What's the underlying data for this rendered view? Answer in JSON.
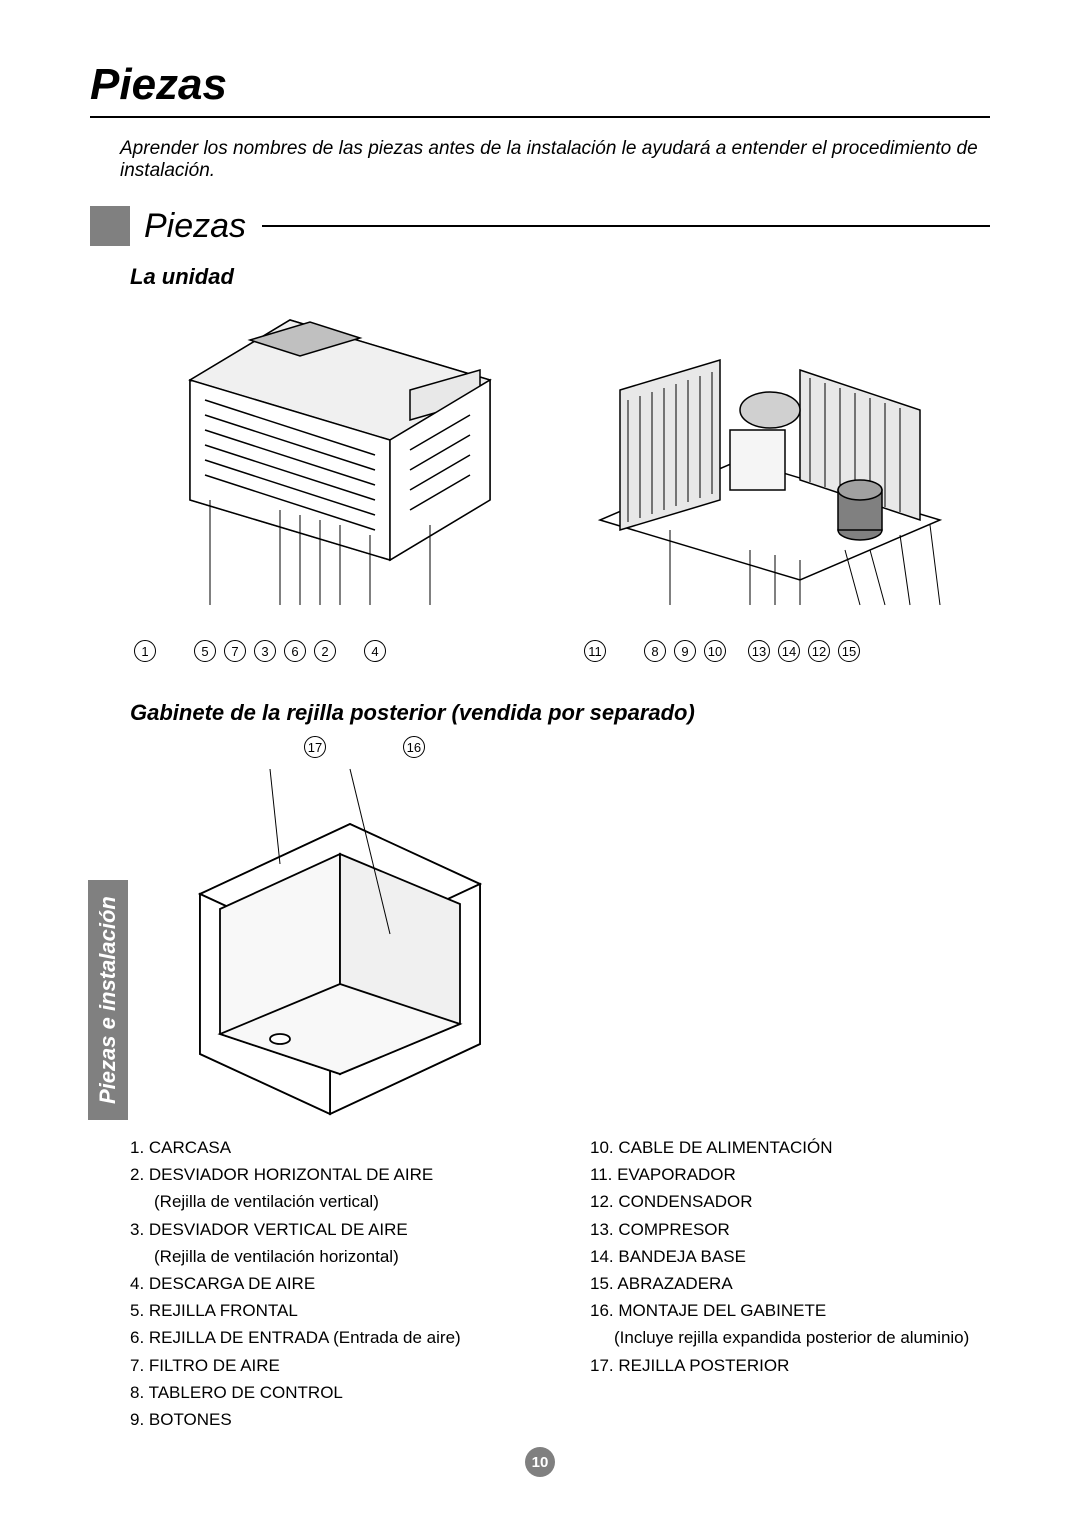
{
  "page": {
    "title": "Piezas",
    "intro": "Aprender los nombres de las piezas antes de la instalación le ayudará a entender el procedimiento de instalación.",
    "section_title": "Piezas",
    "side_tab": "Piezas e instalación",
    "page_number": "10"
  },
  "subheads": {
    "unit": "La unidad",
    "cabinet": "Gabinete de la rejilla posterior (vendida por separado)"
  },
  "callouts": {
    "front": [
      "1",
      "5",
      "7",
      "3",
      "6",
      "2",
      "4"
    ],
    "internal": [
      "11",
      "8",
      "9",
      "10",
      "13",
      "14",
      "12",
      "15"
    ],
    "cabinet": [
      "17",
      "16"
    ]
  },
  "parts": {
    "left": [
      {
        "n": "1.",
        "t": "CARCASA"
      },
      {
        "n": "2.",
        "t": "DESVIADOR HORIZONTAL DE AIRE",
        "sub": "(Rejilla de ventilación vertical)"
      },
      {
        "n": "3.",
        "t": "DESVIADOR VERTICAL DE AIRE",
        "sub": "(Rejilla de ventilación horizontal)"
      },
      {
        "n": "4.",
        "t": "DESCARGA DE AIRE"
      },
      {
        "n": "5.",
        "t": "REJILLA FRONTAL"
      },
      {
        "n": "6.",
        "t": "REJILLA DE ENTRADA (Entrada de aire)"
      },
      {
        "n": "7.",
        "t": "FILTRO DE AIRE"
      },
      {
        "n": "8.",
        "t": "TABLERO DE CONTROL"
      },
      {
        "n": "9.",
        "t": "BOTONES"
      }
    ],
    "right": [
      {
        "n": "10.",
        "t": "CABLE DE ALIMENTACIÓN"
      },
      {
        "n": "11.",
        "t": "EVAPORADOR"
      },
      {
        "n": "12.",
        "t": "CONDENSADOR"
      },
      {
        "n": "13.",
        "t": "COMPRESOR"
      },
      {
        "n": "14.",
        "t": "BANDEJA BASE"
      },
      {
        "n": "15.",
        "t": "ABRAZADERA"
      },
      {
        "n": "16.",
        "t": "MONTAJE DEL GABINETE",
        "sub": "(Incluye rejilla expandida posterior de aluminio)"
      },
      {
        "n": "17.",
        "t": "REJILLA POSTERIOR"
      }
    ]
  },
  "style": {
    "gray": "#808080",
    "black": "#000000",
    "bg": "#ffffff"
  }
}
